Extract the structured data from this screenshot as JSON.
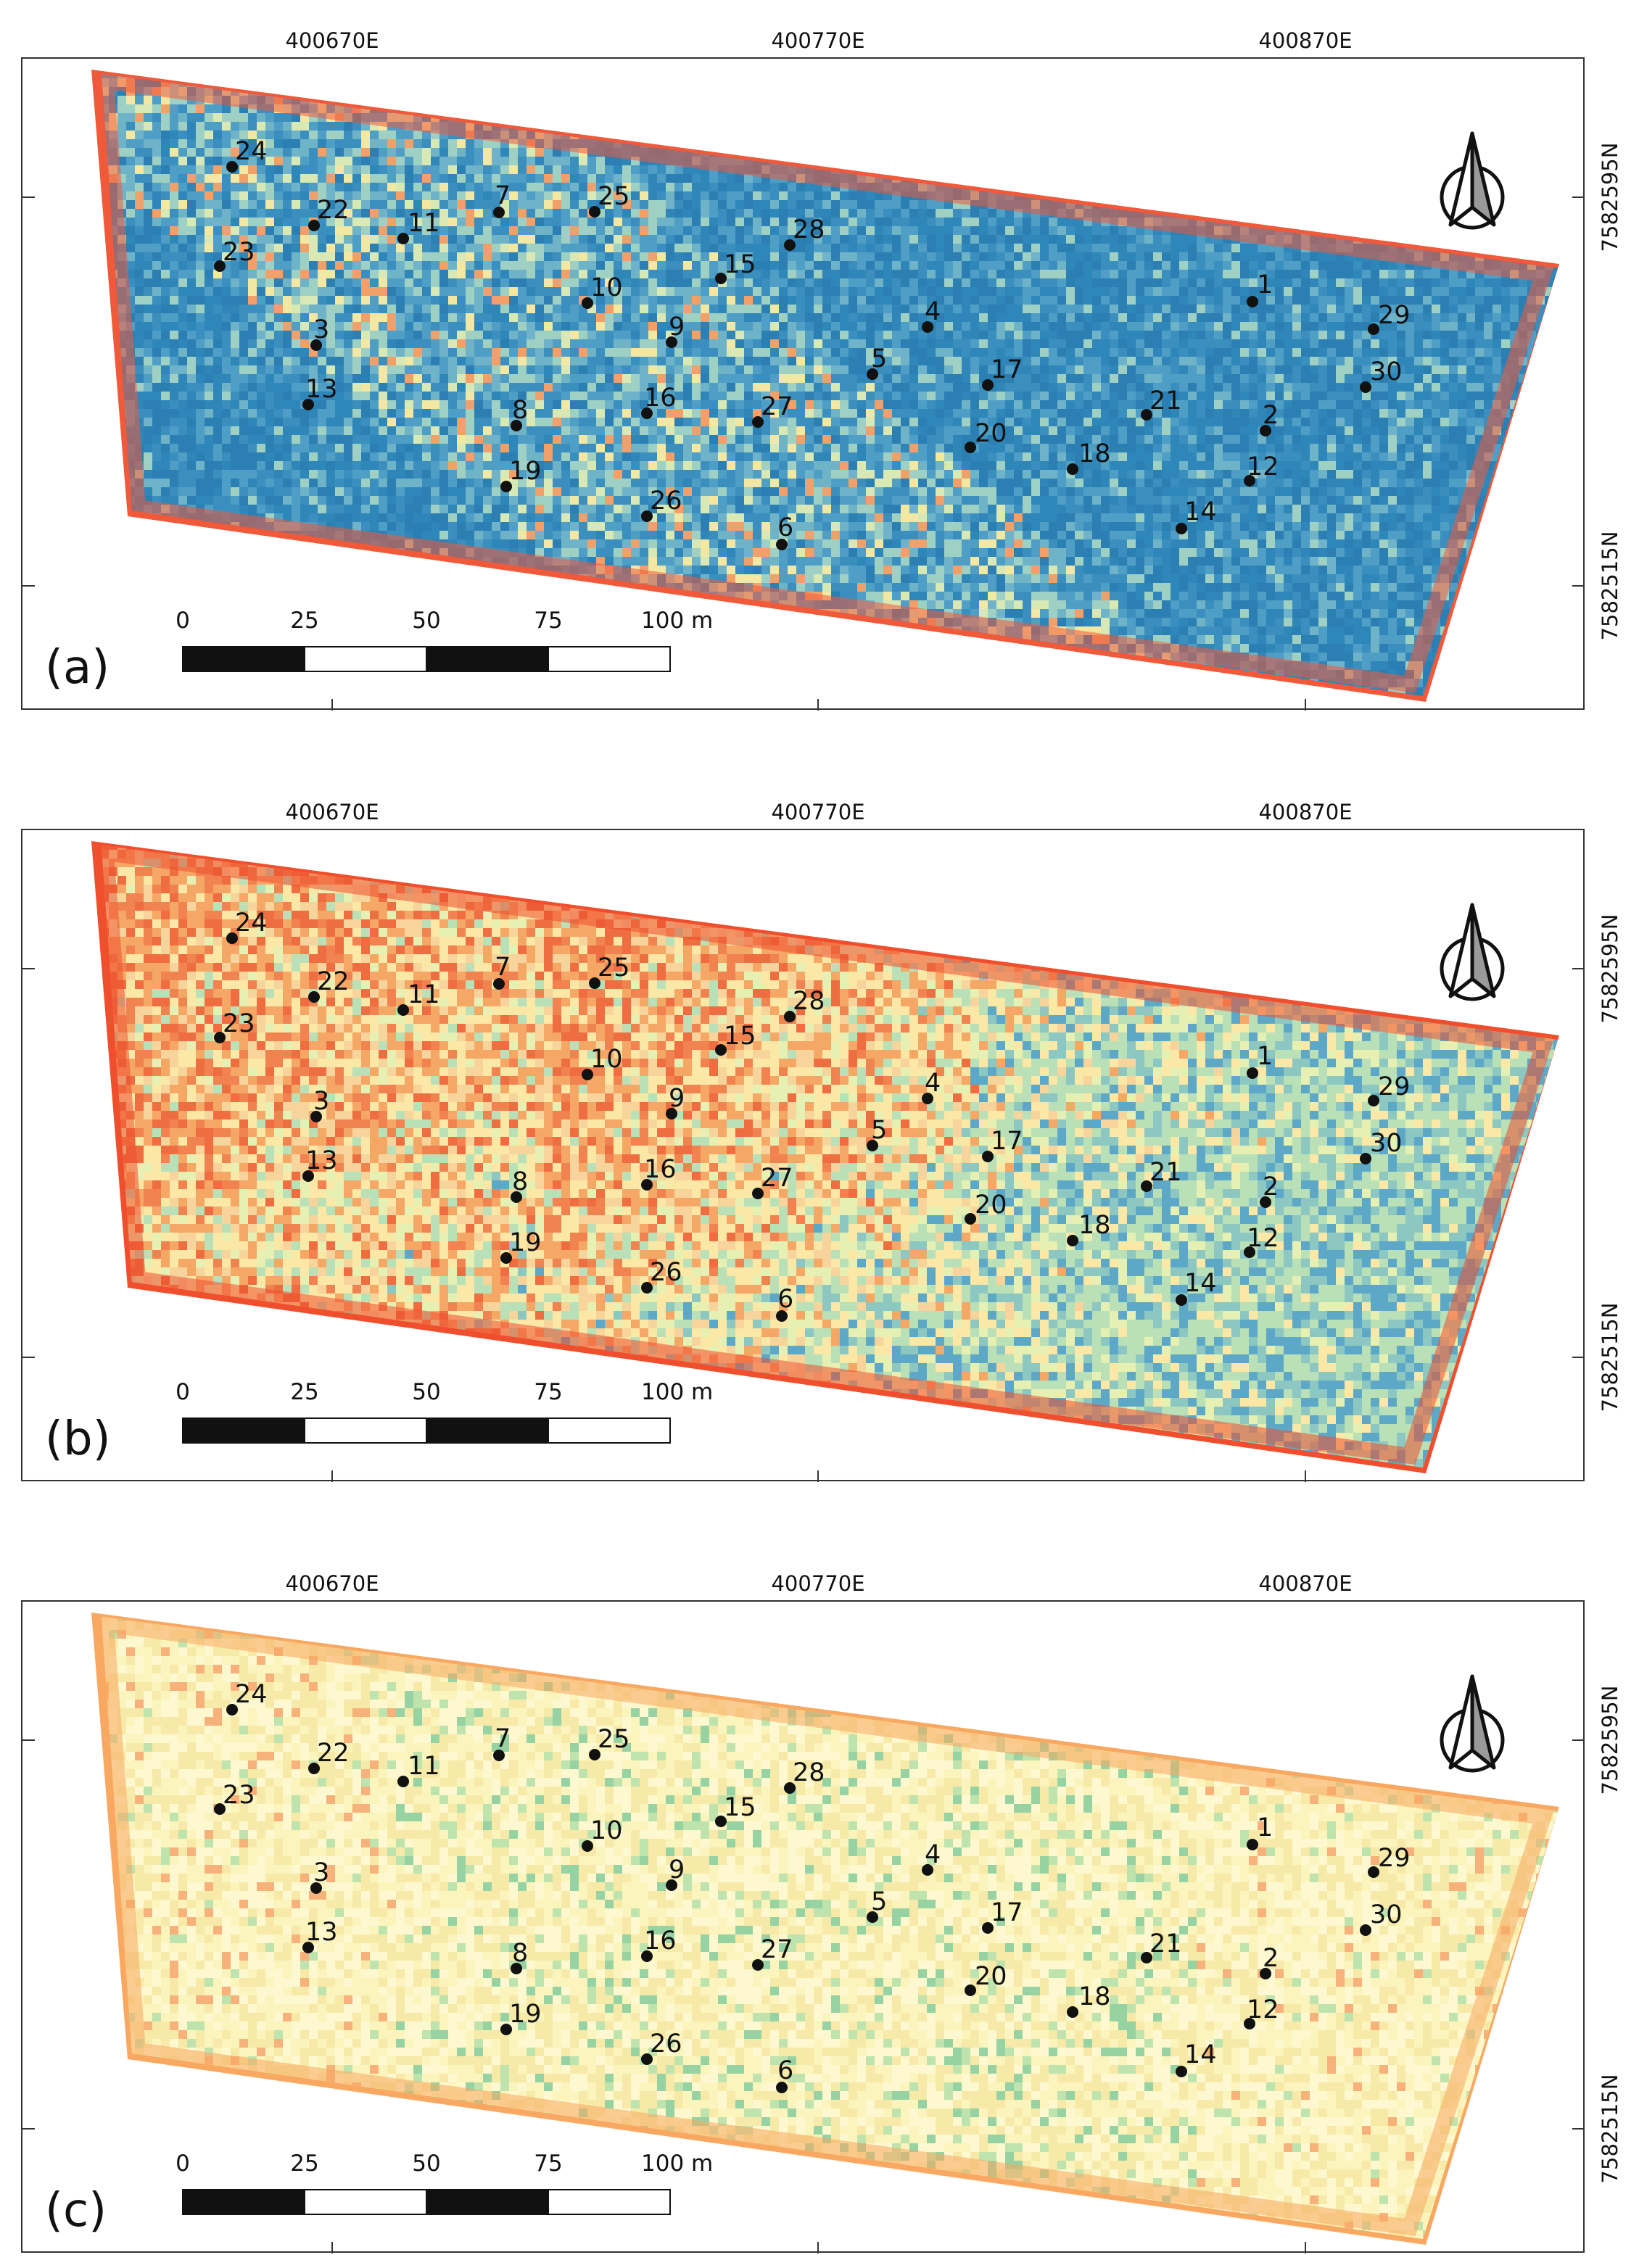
{
  "panels": [
    {
      "id": "a",
      "label": "(a)",
      "colormap": "blue",
      "x_ticks": [
        "400670E",
        "400770E",
        "400870E"
      ],
      "y_ticks": [
        "7582595N",
        "7582515N"
      ]
    },
    {
      "id": "b",
      "label": "(b)",
      "colormap": "spectral",
      "x_ticks": [
        "400670E",
        "400770E",
        "400870E"
      ],
      "y_ticks": [
        "7582595N",
        "7582515N"
      ]
    },
    {
      "id": "c",
      "label": "(c)",
      "colormap": "yellow",
      "x_ticks": [
        "400670E",
        "400770E",
        "400870E"
      ],
      "y_ticks": [
        "7582595N",
        "7582515N"
      ]
    }
  ],
  "scalebar": {
    "labels": [
      "0",
      "25",
      "50",
      "75",
      "100 m"
    ]
  },
  "north_arrow": {
    "icon": "north-arrow-icon"
  },
  "sample_points": [
    "1",
    "2",
    "3",
    "4",
    "5",
    "6",
    "7",
    "8",
    "9",
    "10",
    "11",
    "12",
    "13",
    "14",
    "15",
    "16",
    "17",
    "18",
    "19",
    "20",
    "21",
    "22",
    "23",
    "24",
    "25",
    "26",
    "27",
    "28",
    "29",
    "30"
  ],
  "colors": {
    "blue": "#2f86b8",
    "light_blue": "#8cc6c0",
    "yellow": "#fbf6bd",
    "orange": "#f9a45f",
    "red": "#ef4f2d",
    "green": "#9fd4a4"
  }
}
